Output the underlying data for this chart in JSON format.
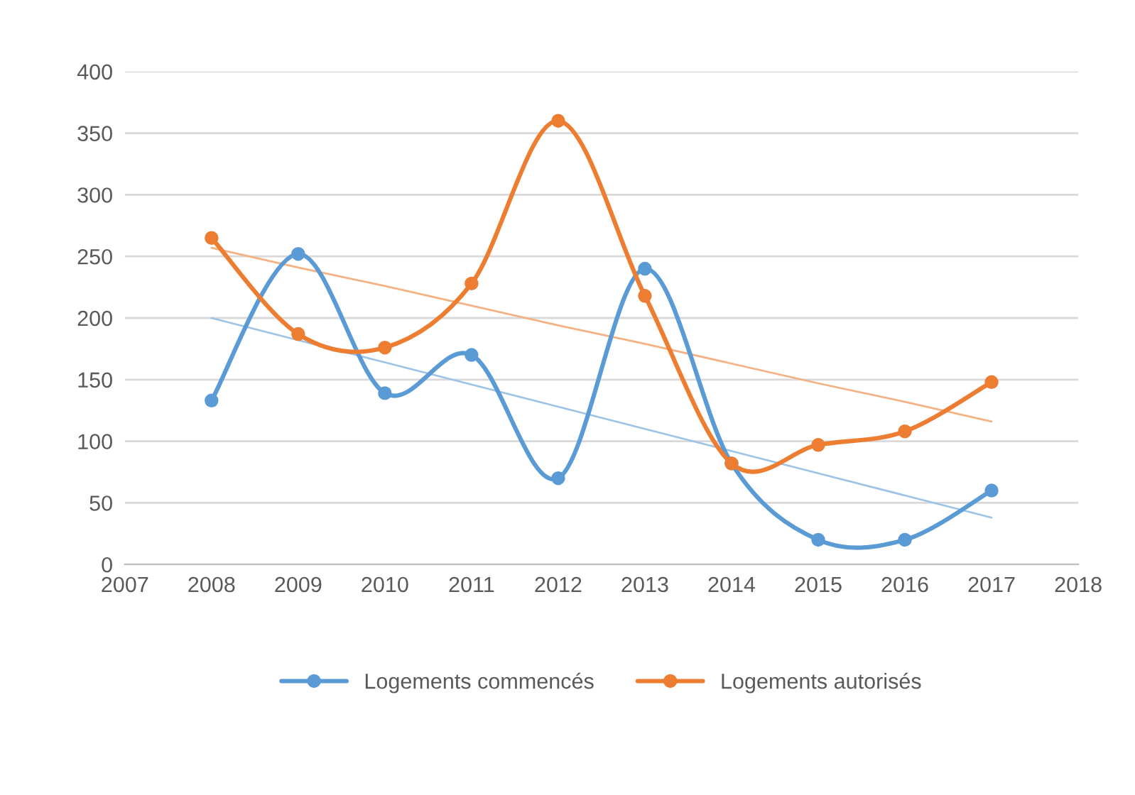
{
  "chart_data": {
    "type": "line",
    "x": [
      2008,
      2009,
      2010,
      2011,
      2012,
      2013,
      2014,
      2015,
      2016,
      2017
    ],
    "series": [
      {
        "name": "Logements commencés",
        "color": "#5b9bd5",
        "values": [
          133,
          252,
          139,
          170,
          70,
          240,
          82,
          20,
          20,
          60
        ],
        "marker": "circle"
      },
      {
        "name": "Logements autorisés",
        "color": "#ed7d31",
        "values": [
          265,
          187,
          176,
          228,
          360,
          218,
          82,
          97,
          108,
          148
        ],
        "marker": "circle"
      },
      {
        "color": "#9dc3e6",
        "values": [
          200,
          182,
          164,
          146,
          128,
          110,
          92,
          74,
          56,
          38
        ],
        "marker": "none"
      },
      {
        "color": "#f4b183",
        "values": [
          257,
          241,
          226,
          210,
          194,
          179,
          163,
          147,
          132,
          116
        ],
        "marker": "none"
      }
    ],
    "xlim": [
      2007,
      2018
    ],
    "xticks": [
      2007,
      2008,
      2009,
      2010,
      2011,
      2012,
      2013,
      2014,
      2015,
      2016,
      2017,
      2018
    ],
    "ylim": [
      0,
      400
    ],
    "yticks": [
      0,
      50,
      100,
      150,
      200,
      250,
      300,
      350,
      400
    ],
    "grid": "y",
    "legend": "bottom",
    "line_style": "solid"
  }
}
